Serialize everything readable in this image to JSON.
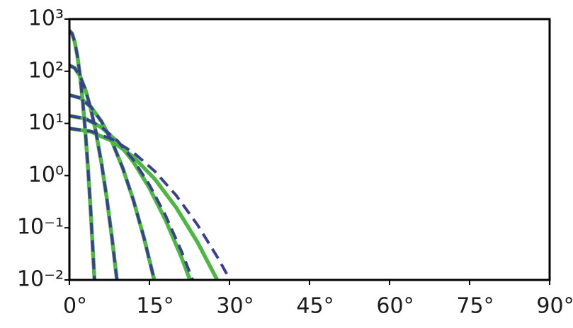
{
  "chart_data": {
    "type": "line",
    "xlim": [
      0,
      90
    ],
    "xticks": [
      {
        "value": 0,
        "label": "0°"
      },
      {
        "value": 15,
        "label": "15°"
      },
      {
        "value": 30,
        "label": "30°"
      },
      {
        "value": 45,
        "label": "45°"
      },
      {
        "value": 60,
        "label": "60°"
      },
      {
        "value": 75,
        "label": "75°"
      },
      {
        "value": 90,
        "label": "90°"
      }
    ],
    "ylim": [
      0.01,
      1000
    ],
    "yscale": "log",
    "yticks": [
      {
        "value": 0.01,
        "label": "10⁻²"
      },
      {
        "value": 0.1,
        "label": "10⁻¹"
      },
      {
        "value": 1,
        "label": "10⁰"
      },
      {
        "value": 10,
        "label": "10¹"
      },
      {
        "value": 100,
        "label": "10²"
      },
      {
        "value": 1000,
        "label": "10³"
      }
    ],
    "grid": false,
    "series": [
      {
        "color": "#4cb843",
        "style": "solid",
        "x": [
          0,
          0.5,
          1,
          1.5,
          2,
          2.5,
          3,
          3.5,
          4,
          4.7
        ],
        "values": [
          600,
          530,
          364,
          195,
          81.2,
          26.4,
          6.67,
          1.31,
          0.201,
          0.01
        ]
      },
      {
        "color": "#4cb843",
        "style": "solid",
        "x": [
          0,
          1,
          2,
          3,
          4,
          5,
          6,
          7,
          8,
          8.9
        ],
        "values": [
          130,
          115,
          80.6,
          44.3,
          19.2,
          6.54,
          1.75,
          0.37,
          0.0615,
          0.01
        ]
      },
      {
        "color": "#4cb843",
        "style": "solid",
        "x": [
          0,
          2,
          4,
          6,
          8,
          10,
          12,
          14,
          15.9
        ],
        "values": [
          35,
          30.8,
          20.9,
          10.96,
          4.44,
          1.39,
          0.336,
          0.0629,
          0.01
        ]
      },
      {
        "color": "#4cb843",
        "style": "solid",
        "x": [
          0,
          3,
          6,
          9,
          12,
          15,
          18,
          21,
          22.6
        ],
        "values": [
          14,
          12.3,
          8.41,
          4.45,
          1.82,
          0.578,
          0.142,
          0.0272,
          0.01
        ]
      },
      {
        "color": "#4cb843",
        "style": "solid",
        "x": [
          0,
          4,
          8,
          12,
          16,
          20,
          24,
          27.7
        ],
        "values": [
          8,
          6.96,
          4.58,
          2.28,
          0.86,
          0.245,
          0.053,
          0.01
        ]
      },
      {
        "color": "#3a3f8f",
        "style": "dashed",
        "x": [
          0,
          0.5,
          1,
          1.5,
          2,
          2.5,
          3,
          3.5,
          4,
          4.7
        ],
        "values": [
          600,
          530,
          364,
          195,
          81.2,
          26.4,
          6.67,
          1.31,
          0.201,
          0.01
        ]
      },
      {
        "color": "#3a3f8f",
        "style": "dashed",
        "x": [
          0,
          1,
          2,
          3,
          4,
          5,
          6,
          7,
          8,
          8.9
        ],
        "values": [
          130,
          115,
          80.6,
          44.3,
          19.2,
          6.54,
          1.75,
          0.37,
          0.0615,
          0.01
        ]
      },
      {
        "color": "#3a3f8f",
        "style": "dashed",
        "x": [
          0,
          2,
          4,
          6,
          8,
          10,
          12,
          14,
          15.9
        ],
        "values": [
          35,
          30.8,
          20.9,
          10.96,
          4.44,
          1.39,
          0.336,
          0.0629,
          0.01
        ]
      },
      {
        "color": "#3a3f8f",
        "style": "dashed",
        "x": [
          0,
          3,
          6,
          9,
          12,
          15,
          18,
          21,
          23.1
        ],
        "values": [
          14,
          12.4,
          8.59,
          4.67,
          1.99,
          0.664,
          0.174,
          0.0356,
          0.01
        ]
      },
      {
        "color": "#3a3f8f",
        "style": "dashed",
        "x": [
          0,
          4,
          8,
          12,
          16,
          20,
          24,
          28,
          30.1
        ],
        "values": [
          8,
          7.11,
          4.99,
          2.77,
          1.21,
          0.419,
          0.114,
          0.0247,
          0.01
        ]
      }
    ]
  }
}
